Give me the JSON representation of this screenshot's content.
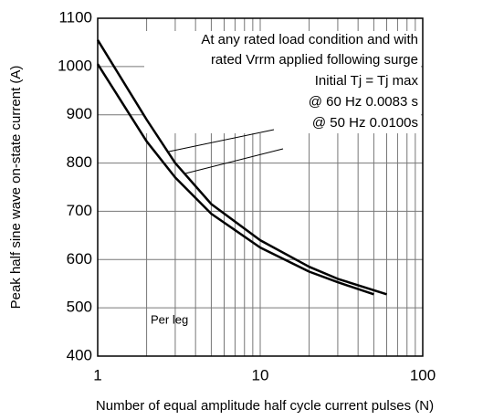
{
  "chart_data": {
    "type": "line",
    "xlabel": "Number of equal amplitude half cycle current pulses (N)",
    "ylabel": "Peak half sine wave on-state current (A)",
    "xscale": "log",
    "xlim": [
      1,
      100
    ],
    "xticks": [
      1,
      10,
      100
    ],
    "x_minor_grid": [
      2,
      3,
      4,
      5,
      6,
      7,
      8,
      9,
      20,
      30,
      40,
      50,
      60,
      70,
      80,
      90
    ],
    "ylim": [
      400,
      1100
    ],
    "yticks": [
      400,
      500,
      600,
      700,
      800,
      900,
      1000,
      1100
    ],
    "grid": true,
    "series": [
      {
        "color": "#000000",
        "x": [
          1,
          2,
          3,
          5,
          10,
          20,
          30,
          60
        ],
        "values": [
          1055,
          890,
          800,
          715,
          640,
          585,
          560,
          528
        ]
      },
      {
        "color": "#000000",
        "x": [
          1,
          2,
          3,
          5,
          10,
          20,
          30,
          50
        ],
        "values": [
          1005,
          845,
          770,
          695,
          625,
          575,
          553,
          528
        ]
      }
    ],
    "annotations": [
      "At any rated load condition and with",
      "rated Vrrm applied following surge",
      "Initial Tj = Tj max",
      "@ 60  Hz 0.0083 s",
      "@ 50 Hz 0.0100s",
      "Per leg"
    ]
  }
}
